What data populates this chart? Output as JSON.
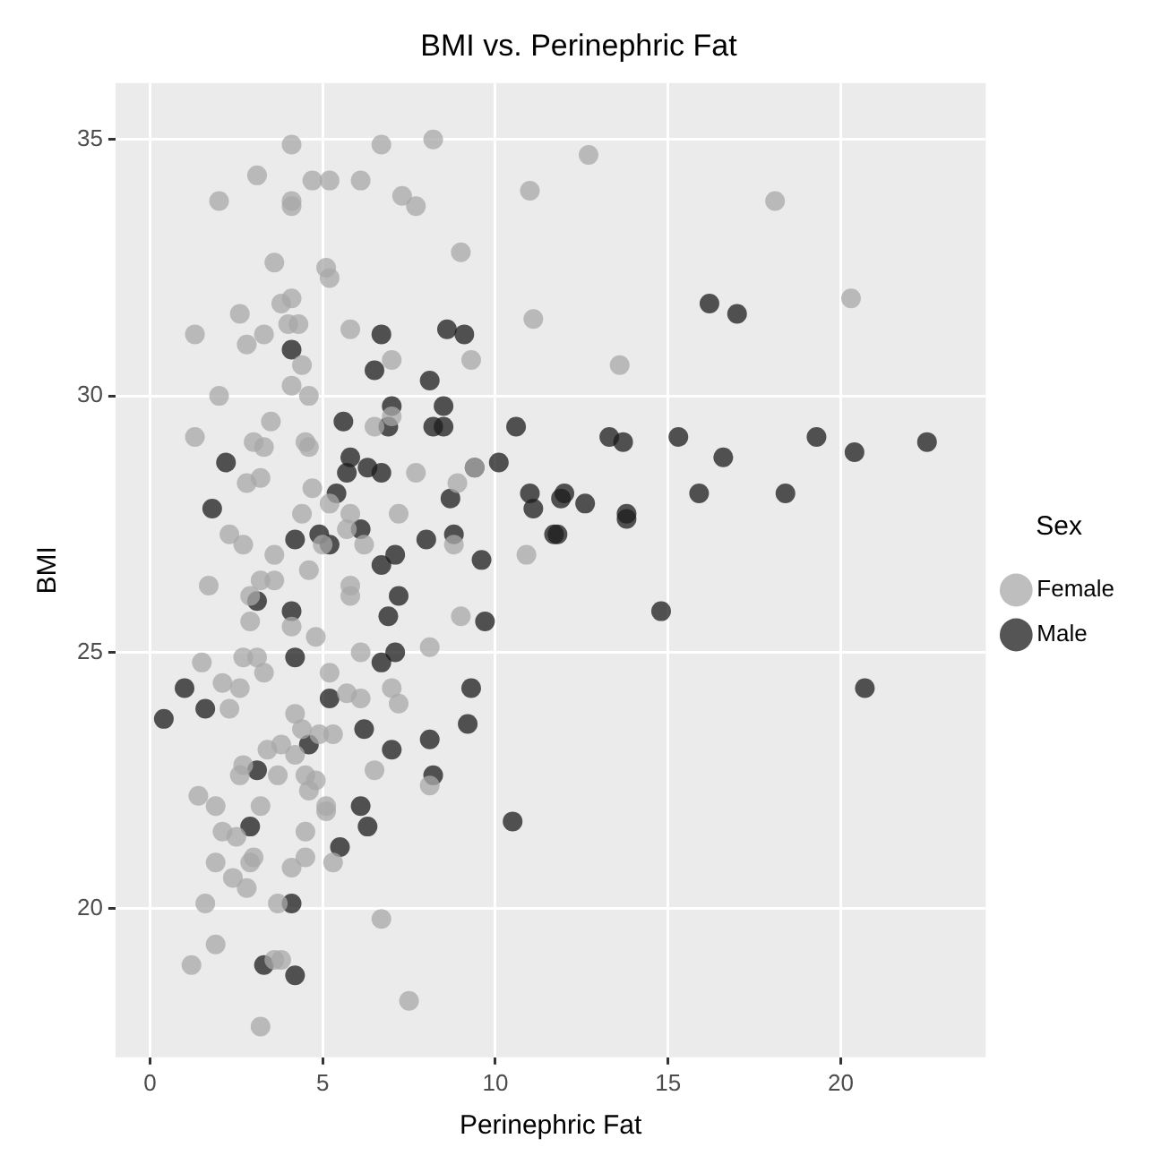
{
  "chart_data": {
    "type": "scatter",
    "title": "BMI vs. Perinephric Fat",
    "xlabel": "Perinephric Fat",
    "ylabel": "BMI",
    "legend_title": "Sex",
    "legend": "right",
    "grid": true,
    "marker": "circle",
    "xlim": [
      -1.0,
      24.2
    ],
    "ylim": [
      17.1,
      36.1
    ],
    "xticks": [
      0,
      5,
      10,
      15,
      20
    ],
    "yticks": [
      20,
      25,
      30,
      35
    ],
    "series": [
      {
        "name": "Female",
        "color": "#a8a8a8",
        "x": [
          4.1,
          6.7,
          8.2,
          3.1,
          2.0,
          4.7,
          5.2,
          6.1,
          4.1,
          4.1,
          7.3,
          7.7,
          11.0,
          9.0,
          3.6,
          5.1,
          5.2,
          4.1,
          3.8,
          2.6,
          1.3,
          2.8,
          3.3,
          4.0,
          4.3,
          5.8,
          11.1,
          7.0,
          4.4,
          9.3,
          2.0,
          4.1,
          4.6,
          3.5,
          1.3,
          3.0,
          3.3,
          4.5,
          4.6,
          6.5,
          7.0,
          2.8,
          3.2,
          4.7,
          7.7,
          8.9,
          9.4,
          4.4,
          5.2,
          5.8,
          7.2,
          2.3,
          2.7,
          3.6,
          5.0,
          5.7,
          8.8,
          10.9,
          6.2,
          12.7,
          18.1,
          20.3,
          13.6,
          1.7,
          2.9,
          3.2,
          3.6,
          2.9,
          4.1,
          4.8,
          4.6,
          5.8,
          5.8,
          1.5,
          2.7,
          3.1,
          3.3,
          2.1,
          2.6,
          2.3,
          5.2,
          6.1,
          6.1,
          5.7,
          7.0,
          7.2,
          8.1,
          9.0,
          4.2,
          3.4,
          3.8,
          4.4,
          4.9,
          5.3,
          2.7,
          2.6,
          3.7,
          4.2,
          4.5,
          4.8,
          4.6,
          5.1,
          5.1,
          6.5,
          8.1,
          1.4,
          1.9,
          3.2,
          2.1,
          2.5,
          4.5,
          1.9,
          2.4,
          2.8,
          2.9,
          3.0,
          4.1,
          4.5,
          5.3,
          1.6,
          3.7,
          6.7,
          1.9,
          1.2,
          3.6,
          3.8,
          7.5,
          3.2
        ],
        "values": [
          34.9,
          34.9,
          35.0,
          34.3,
          33.8,
          34.2,
          34.2,
          34.2,
          33.8,
          33.7,
          33.9,
          33.7,
          34.0,
          32.8,
          32.6,
          32.5,
          32.3,
          31.9,
          31.8,
          31.6,
          31.2,
          31.0,
          31.2,
          31.4,
          31.4,
          31.3,
          31.5,
          30.7,
          30.6,
          30.7,
          30.0,
          30.2,
          30.0,
          29.5,
          29.2,
          29.1,
          29.0,
          29.1,
          29.0,
          29.4,
          29.6,
          28.3,
          28.4,
          28.2,
          28.5,
          28.3,
          28.6,
          27.7,
          27.9,
          27.7,
          27.7,
          27.3,
          27.1,
          26.9,
          27.1,
          27.4,
          27.1,
          26.9,
          27.1,
          34.7,
          33.8,
          31.9,
          30.6,
          26.3,
          26.1,
          26.4,
          26.4,
          25.6,
          25.5,
          25.3,
          26.6,
          26.3,
          26.1,
          24.8,
          24.9,
          24.9,
          24.6,
          24.4,
          24.3,
          23.9,
          24.6,
          25.0,
          24.1,
          24.2,
          24.3,
          24.0,
          25.1,
          25.7,
          23.8,
          23.1,
          23.2,
          23.5,
          23.4,
          23.4,
          22.8,
          22.6,
          22.6,
          23.0,
          22.6,
          22.5,
          22.3,
          22.0,
          21.9,
          22.7,
          22.4,
          22.2,
          22.0,
          22.0,
          21.5,
          21.4,
          21.5,
          20.9,
          20.6,
          20.4,
          20.9,
          21.0,
          20.8,
          21.0,
          20.9,
          20.1,
          20.1,
          19.8,
          19.3,
          18.9,
          19.0,
          19.0,
          18.2,
          17.7
        ]
      },
      {
        "name": "Male",
        "color": "#1c1c1c",
        "x": [
          6.7,
          8.6,
          9.1,
          4.1,
          6.5,
          8.1,
          7.0,
          8.5,
          8.5,
          8.2,
          6.9,
          5.6,
          10.6,
          2.2,
          5.8,
          5.7,
          5.4,
          6.3,
          6.7,
          9.4,
          10.1,
          1.8,
          8.7,
          11.0,
          11.1,
          11.9,
          4.2,
          4.9,
          5.2,
          6.1,
          8.0,
          8.8,
          11.7,
          9.6,
          7.1,
          6.7,
          16.2,
          17.0,
          13.3,
          13.7,
          15.3,
          16.6,
          19.3,
          20.4,
          22.5,
          12.0,
          12.6,
          15.9,
          18.4,
          13.8,
          13.8,
          11.8,
          14.8,
          20.7,
          7.2,
          3.1,
          4.1,
          6.9,
          9.7,
          4.2,
          7.1,
          6.7,
          1.0,
          1.6,
          0.4,
          5.2,
          9.3,
          9.2,
          6.2,
          4.6,
          8.1,
          7.0,
          8.2,
          3.1,
          6.1,
          6.3,
          2.9,
          10.5,
          5.5,
          4.1,
          3.3,
          4.2
        ],
        "values": [
          31.2,
          31.3,
          31.2,
          30.9,
          30.5,
          30.3,
          29.8,
          29.8,
          29.4,
          29.4,
          29.4,
          29.5,
          29.4,
          28.7,
          28.8,
          28.5,
          28.1,
          28.6,
          28.5,
          28.6,
          28.7,
          27.8,
          28.0,
          28.1,
          27.8,
          28.0,
          27.2,
          27.3,
          27.1,
          27.4,
          27.2,
          27.3,
          27.3,
          26.8,
          26.9,
          26.7,
          31.8,
          31.6,
          29.2,
          29.1,
          29.2,
          28.8,
          29.2,
          28.9,
          29.1,
          28.1,
          27.9,
          28.1,
          28.1,
          27.7,
          27.6,
          27.3,
          25.8,
          24.3,
          26.1,
          26.0,
          25.8,
          25.7,
          25.6,
          24.9,
          25.0,
          24.8,
          24.3,
          23.9,
          23.7,
          24.1,
          24.3,
          23.6,
          23.5,
          23.2,
          23.3,
          23.1,
          22.6,
          22.7,
          22.0,
          21.6,
          21.6,
          21.7,
          21.2,
          20.1,
          18.9,
          18.7
        ]
      }
    ]
  }
}
